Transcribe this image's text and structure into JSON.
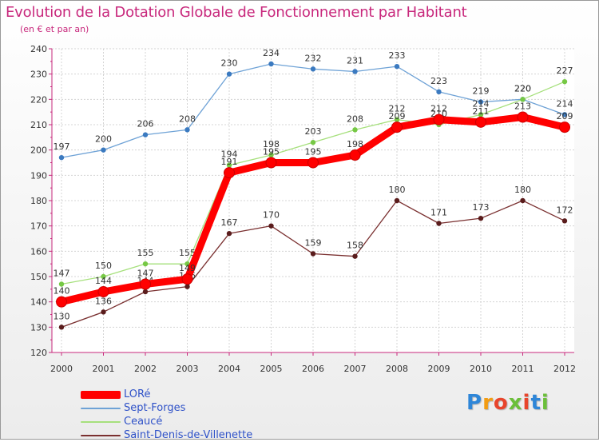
{
  "chart_data": {
    "type": "line",
    "title": "Evolution de la Dotation Globale de Fonctionnement par Habitant",
    "subtitle": "(en € et par an)",
    "xlabel": "",
    "ylabel": "",
    "categories": [
      "2000",
      "2001",
      "2002",
      "2003",
      "2004",
      "2005",
      "2006",
      "2007",
      "2008",
      "2009",
      "2010",
      "2011",
      "2012"
    ],
    "ylim": [
      120,
      240
    ],
    "yticks": [
      120,
      130,
      140,
      150,
      160,
      170,
      180,
      190,
      200,
      210,
      220,
      230,
      240
    ],
    "grid": true,
    "legend_position": "bottom-left",
    "series": [
      {
        "name": "LORé",
        "color": "#ff0000",
        "dot_color": "#e00000",
        "label_color": "#333333",
        "emphasis": true,
        "values": [
          140,
          144,
          147,
          149,
          191,
          195,
          195,
          198,
          209,
          212,
          211,
          213,
          209
        ]
      },
      {
        "name": "Sept-Forges",
        "color": "#6ea2d6",
        "dot_color": "#3b7ac0",
        "label_color": "#333333",
        "emphasis": false,
        "values": [
          197,
          200,
          206,
          208,
          230,
          234,
          232,
          231,
          233,
          223,
          219,
          220,
          214
        ]
      },
      {
        "name": "Ceaucé",
        "color": "#a6e07c",
        "dot_color": "#76c845",
        "label_color": "#333333",
        "emphasis": false,
        "values": [
          147,
          150,
          155,
          155,
          194,
          198,
          203,
          208,
          212,
          210,
          214,
          220,
          227
        ]
      },
      {
        "name": "Saint-Denis-de-Villenette",
        "color": "#7a3030",
        "dot_color": "#5a1c1c",
        "label_color": "#333333",
        "emphasis": false,
        "values": [
          130,
          136,
          144,
          146,
          167,
          170,
          159,
          158,
          180,
          171,
          173,
          180,
          172
        ]
      }
    ]
  },
  "logo": {
    "letters": [
      "P",
      "r",
      "o",
      "x",
      "i",
      "t",
      "i"
    ],
    "colors": [
      "#2e86d8",
      "#f39c12",
      "#e8452c",
      "#6bbf3a",
      "#e8452c",
      "#2e86d8",
      "#6bbf3a"
    ]
  }
}
